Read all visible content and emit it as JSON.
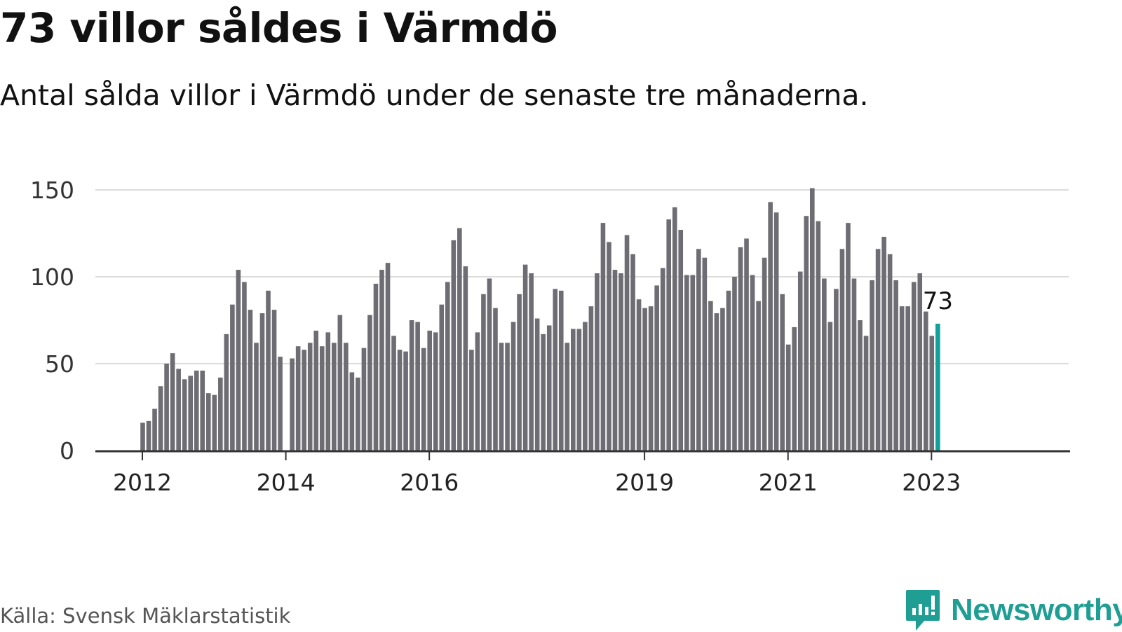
{
  "header": {
    "title": "73 villor såldes i Värmdö",
    "subtitle": "Antal sålda villor i Värmdö under de senaste tre månaderna."
  },
  "footer": {
    "source": "Källa: Svensk Mäklarstatistik",
    "brand": "Newsworthy"
  },
  "colors": {
    "bar": "#6e6d73",
    "highlight": "#12a19a",
    "grid": "#dcdcdc",
    "axis": "#333333",
    "brand": "#1f9e93"
  },
  "chart_data": {
    "type": "bar",
    "title": "73 villor såldes i Värmdö",
    "subtitle": "Antal sålda villor i Värmdö under de senaste tre månaderna.",
    "x_start": "2012-01",
    "x_end": "2023-02",
    "ylim": [
      0,
      150
    ],
    "y_ticks": [
      0,
      50,
      100,
      150
    ],
    "x_ticks": [
      {
        "label": "2012",
        "month": "2012-01"
      },
      {
        "label": "2014",
        "month": "2014-01"
      },
      {
        "label": "2016",
        "month": "2016-01"
      },
      {
        "label": "2019",
        "month": "2019-01"
      },
      {
        "label": "2021",
        "month": "2021-01"
      },
      {
        "label": "2023",
        "month": "2023-01"
      }
    ],
    "grid": true,
    "highlight_label": "73",
    "highlight_last": true,
    "values": [
      16,
      17,
      24,
      37,
      50,
      56,
      47,
      41,
      43,
      46,
      46,
      33,
      32,
      42,
      67,
      84,
      104,
      97,
      81,
      62,
      79,
      92,
      81,
      54,
      null,
      53,
      60,
      58,
      62,
      69,
      60,
      68,
      62,
      78,
      62,
      45,
      42,
      59,
      78,
      96,
      104,
      108,
      66,
      58,
      57,
      75,
      74,
      59,
      69,
      68,
      84,
      97,
      121,
      128,
      106,
      58,
      68,
      90,
      99,
      82,
      62,
      62,
      74,
      90,
      107,
      102,
      76,
      67,
      72,
      93,
      92,
      62,
      70,
      70,
      74,
      83,
      102,
      131,
      120,
      104,
      102,
      124,
      113,
      87,
      82,
      83,
      95,
      105,
      133,
      140,
      127,
      101,
      101,
      116,
      111,
      86,
      79,
      82,
      92,
      100,
      117,
      122,
      101,
      86,
      111,
      143,
      137,
      90,
      61,
      71,
      103,
      135,
      151,
      132,
      99,
      74,
      93,
      116,
      131,
      99,
      75,
      66,
      98,
      116,
      123,
      113,
      98,
      83,
      83,
      97,
      102,
      80,
      66,
      73
    ]
  }
}
